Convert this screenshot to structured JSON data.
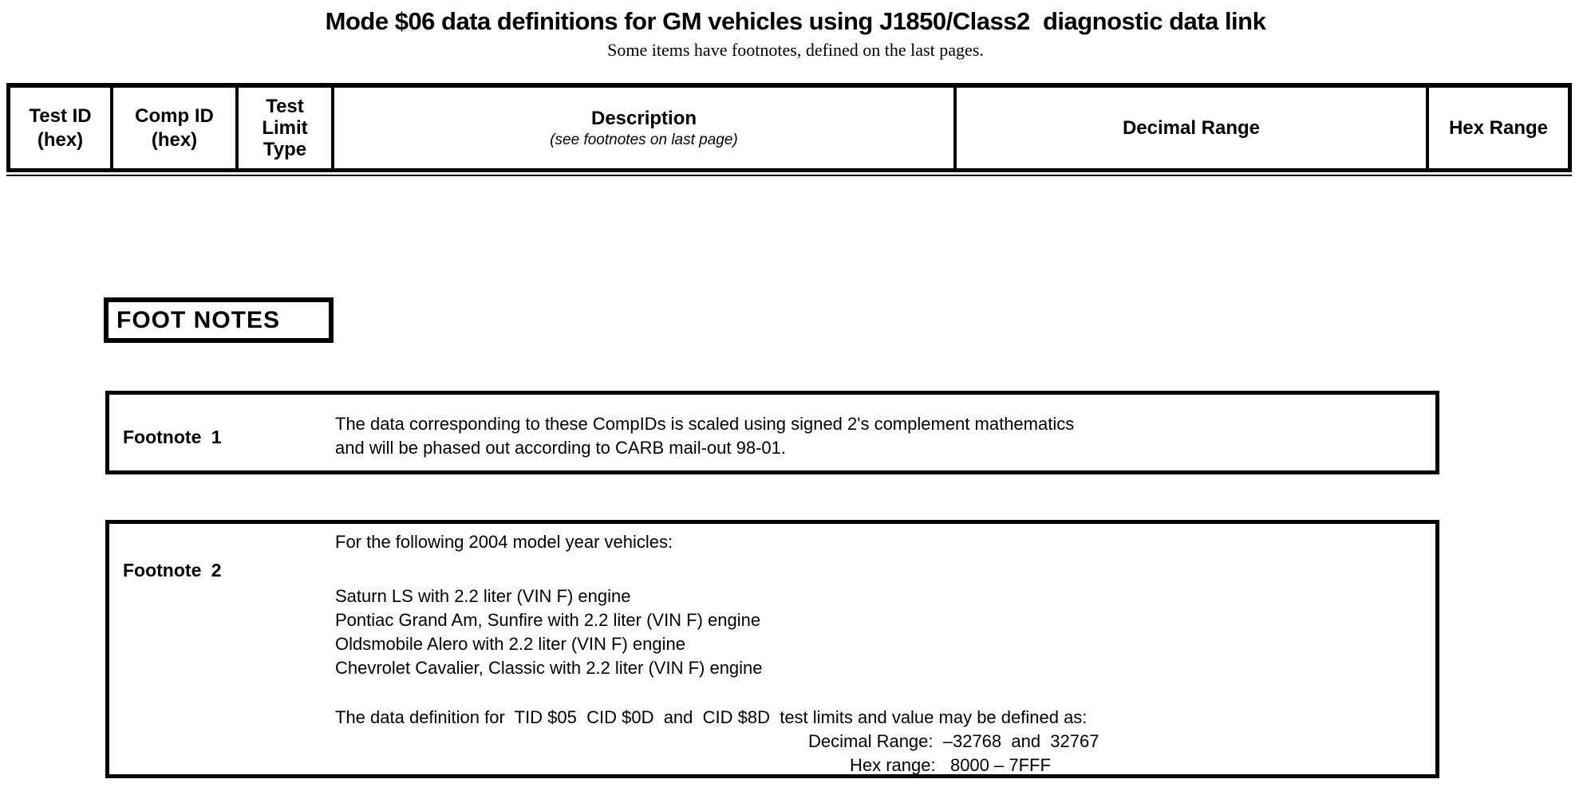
{
  "page": {
    "title": "Mode $06 data definitions for GM vehicles using J1850/Class2  diagnostic data link",
    "subtitle": "Some items have footnotes, defined on the last pages."
  },
  "table": {
    "columns": {
      "test_id": {
        "line1": "Test ID",
        "line2": "(hex)"
      },
      "comp_id": {
        "line1": "Comp ID",
        "line2": "(hex)"
      },
      "test_limit": {
        "line1": "Test",
        "line2": "Limit",
        "line3": "Type"
      },
      "description": {
        "title": "Description",
        "note": "(see footnotes on last page)"
      },
      "decimal_range": {
        "title": "Decimal Range"
      },
      "hex_range": {
        "title": "Hex Range"
      }
    }
  },
  "footnotes": {
    "heading": "FOOT NOTES",
    "footnote1": {
      "label": "Footnote 1",
      "line1": "The data corresponding to these CompIDs is scaled using signed 2's complement mathematics",
      "line2": "and will be phased out according to CARB mail-out 98-01."
    },
    "footnote2": {
      "label": "Footnote 2",
      "intro": "For the following 2004 model year vehicles:",
      "vehicles": [
        "Saturn LS with 2.2 liter (VIN F) engine",
        "Pontiac Grand Am, Sunfire with 2.2 liter (VIN F) engine",
        "Oldsmobile Alero with 2.2 liter (VIN F) engine",
        "Chevrolet Cavalier, Classic with 2.2 liter (VIN F) engine"
      ],
      "definition": "The data definition for  TID $05  CID $0D  and  CID $8D  test limits and value may be defined as:",
      "decimal_range_line": "Decimal Range:  –32768  and  32767",
      "hex_range_line": "Hex range:   8000 – 7FFF"
    }
  },
  "colors": {
    "ink": "#000000",
    "paper": "#ffffff"
  }
}
